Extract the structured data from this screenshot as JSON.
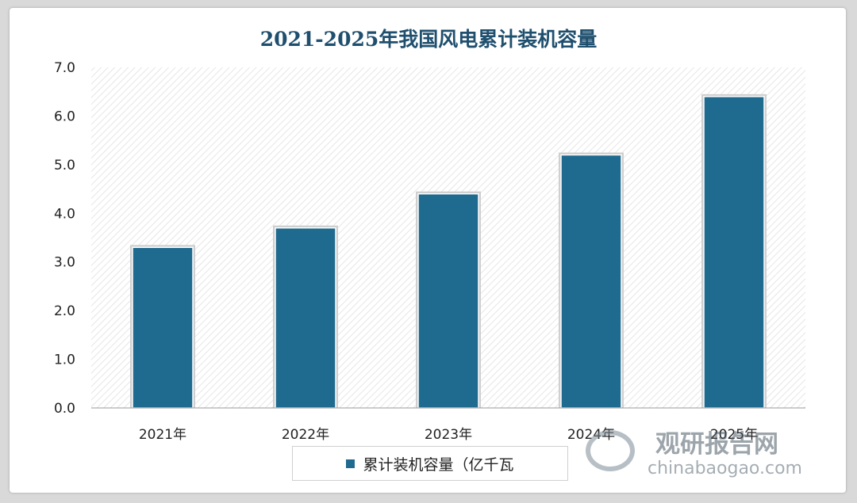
{
  "chart_data": {
    "type": "bar",
    "title": "2021-2025年我国风电累计装机容量",
    "categories": [
      "2021年",
      "2022年",
      "2023年",
      "2024年",
      "2025年"
    ],
    "series": [
      {
        "name": "累计装机容量（亿千瓦",
        "values": [
          3.3,
          3.7,
          4.4,
          5.2,
          6.4
        ]
      }
    ],
    "ylim": [
      0,
      7
    ],
    "yticks": [
      0.0,
      1.0,
      2.0,
      3.0,
      4.0,
      5.0,
      6.0,
      7.0
    ],
    "ytick_labels": [
      "0.0",
      "1.0",
      "2.0",
      "3.0",
      "4.0",
      "5.0",
      "6.0",
      "7.0"
    ],
    "legend_position": "bottom",
    "grid": false,
    "colors": {
      "bar": "#1f6a8f",
      "title": "#1f4f6e",
      "axis": "#999999"
    }
  },
  "watermark": {
    "center_brand": "观研报告网",
    "center_url": "chinabaogao.com",
    "corner_brand": "观研报告网",
    "corner_url": "chinabaogao.com"
  }
}
